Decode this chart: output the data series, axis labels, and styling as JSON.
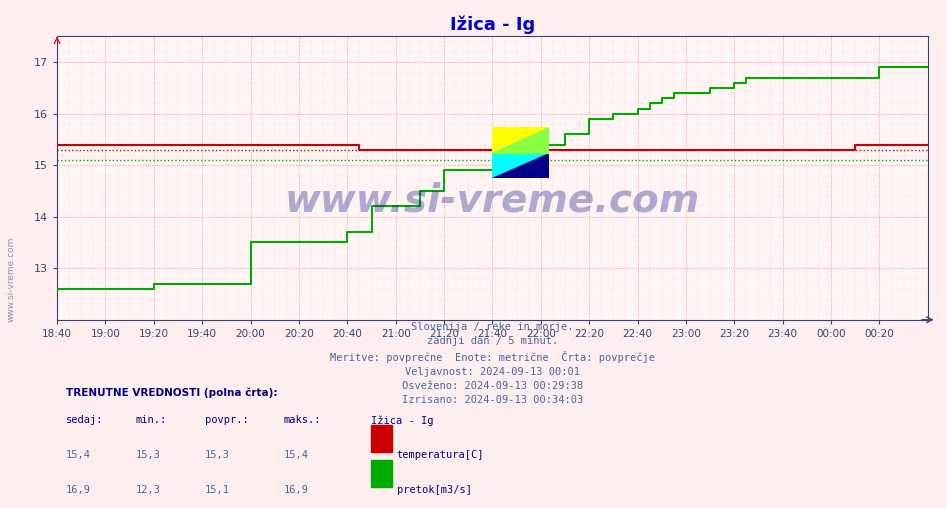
{
  "title": "Ižica - Ig",
  "title_color": "#0000cc",
  "bg_color": "#ffeeee",
  "plot_bg_color": "#fff5f5",
  "grid_color_red": "#ff8888",
  "grid_color_green": "#88cc88",
  "xmin": 0,
  "xmax": 360,
  "ymin": 12.0,
  "ymax": 17.5,
  "yticks": [
    13,
    14,
    15,
    16,
    17
  ],
  "xtick_labels": [
    "18:40",
    "19:00",
    "19:20",
    "19:40",
    "20:00",
    "20:20",
    "20:40",
    "21:00",
    "21:20",
    "21:40",
    "22:00",
    "22:20",
    "22:40",
    "23:00",
    "23:20",
    "23:40",
    "00:00",
    "00:20"
  ],
  "temp_avg": 15.3,
  "flow_avg": 15.1,
  "temp_color": "#cc0000",
  "flow_color": "#00aa00",
  "temp_data_x": [
    0,
    5,
    10,
    15,
    20,
    25,
    30,
    35,
    40,
    45,
    50,
    55,
    60,
    65,
    70,
    75,
    80,
    85,
    90,
    95,
    100,
    105,
    110,
    115,
    120,
    125,
    130,
    135,
    140,
    145,
    150,
    155,
    160,
    165,
    170,
    175,
    180,
    185,
    190,
    195,
    200,
    205,
    210,
    215,
    220,
    225,
    230,
    235,
    240,
    245,
    250,
    255,
    260,
    265,
    270,
    275,
    280,
    285,
    290,
    295,
    300,
    305,
    310,
    315,
    320,
    325,
    330,
    335,
    340,
    345,
    350,
    355,
    360
  ],
  "temp_data_y": [
    15.4,
    15.4,
    15.4,
    15.4,
    15.4,
    15.4,
    15.4,
    15.4,
    15.4,
    15.4,
    15.4,
    15.4,
    15.4,
    15.4,
    15.4,
    15.4,
    15.4,
    15.4,
    15.4,
    15.4,
    15.4,
    15.4,
    15.4,
    15.4,
    15.4,
    15.3,
    15.3,
    15.3,
    15.3,
    15.3,
    15.3,
    15.3,
    15.3,
    15.3,
    15.3,
    15.3,
    15.3,
    15.3,
    15.3,
    15.3,
    15.3,
    15.3,
    15.3,
    15.3,
    15.3,
    15.3,
    15.3,
    15.3,
    15.3,
    15.3,
    15.3,
    15.3,
    15.3,
    15.3,
    15.3,
    15.3,
    15.3,
    15.3,
    15.3,
    15.3,
    15.3,
    15.3,
    15.3,
    15.3,
    15.3,
    15.3,
    15.4,
    15.4,
    15.4,
    15.4,
    15.4,
    15.4,
    15.4
  ],
  "flow_data_x": [
    0,
    5,
    10,
    15,
    20,
    25,
    30,
    35,
    40,
    45,
    50,
    55,
    60,
    65,
    70,
    75,
    80,
    85,
    90,
    95,
    100,
    105,
    110,
    115,
    120,
    125,
    130,
    135,
    140,
    145,
    150,
    155,
    160,
    165,
    170,
    175,
    180,
    185,
    190,
    195,
    200,
    205,
    210,
    215,
    220,
    225,
    230,
    235,
    240,
    245,
    250,
    255,
    260,
    265,
    270,
    275,
    280,
    285,
    290,
    295,
    300,
    305,
    310,
    315,
    320,
    325,
    330,
    335,
    340,
    345,
    350,
    355,
    360
  ],
  "flow_data_y": [
    12.6,
    12.6,
    12.6,
    12.6,
    12.6,
    12.6,
    12.6,
    12.6,
    12.7,
    12.7,
    12.7,
    12.7,
    12.7,
    12.7,
    12.7,
    12.7,
    13.5,
    13.5,
    13.5,
    13.5,
    13.5,
    13.5,
    13.5,
    13.5,
    13.7,
    13.7,
    14.2,
    14.2,
    14.2,
    14.2,
    14.5,
    14.5,
    14.9,
    14.9,
    14.9,
    14.9,
    14.9,
    14.9,
    14.9,
    14.9,
    15.4,
    15.4,
    15.6,
    15.6,
    15.9,
    15.9,
    16.0,
    16.0,
    16.1,
    16.2,
    16.3,
    16.4,
    16.4,
    16.4,
    16.5,
    16.5,
    16.6,
    16.7,
    16.7,
    16.7,
    16.7,
    16.7,
    16.7,
    16.7,
    16.7,
    16.7,
    16.7,
    16.7,
    16.9,
    16.9,
    16.9,
    16.9,
    16.9
  ],
  "watermark_text": "www.si-vreme.com",
  "watermark_color": "#1a1a8c",
  "watermark_alpha": 0.35,
  "subtitle_lines": [
    "Slovenija / reke in morje.",
    "zadnji dan / 5 minut.",
    "Meritve: povprečne  Enote: metrične  Črta: povprečje",
    "Veljavnost: 2024-09-13 00:01",
    "Osveženo: 2024-09-13 00:29:38",
    "Izrisano: 2024-09-13 00:34:03"
  ],
  "subtitle_color": "#4466aa",
  "footer_label_color": "#000088",
  "footer_value_color": "#4466aa",
  "footer_title_color": "#000088",
  "legend_station": "Ižica - Ig",
  "sedaj_temp": "15,4",
  "min_temp": "15,3",
  "povpr_temp": "15,3",
  "maks_temp": "15,4",
  "sedaj_flow": "16,9",
  "min_flow": "12,3",
  "povpr_flow": "15,1",
  "maks_flow": "16,9"
}
